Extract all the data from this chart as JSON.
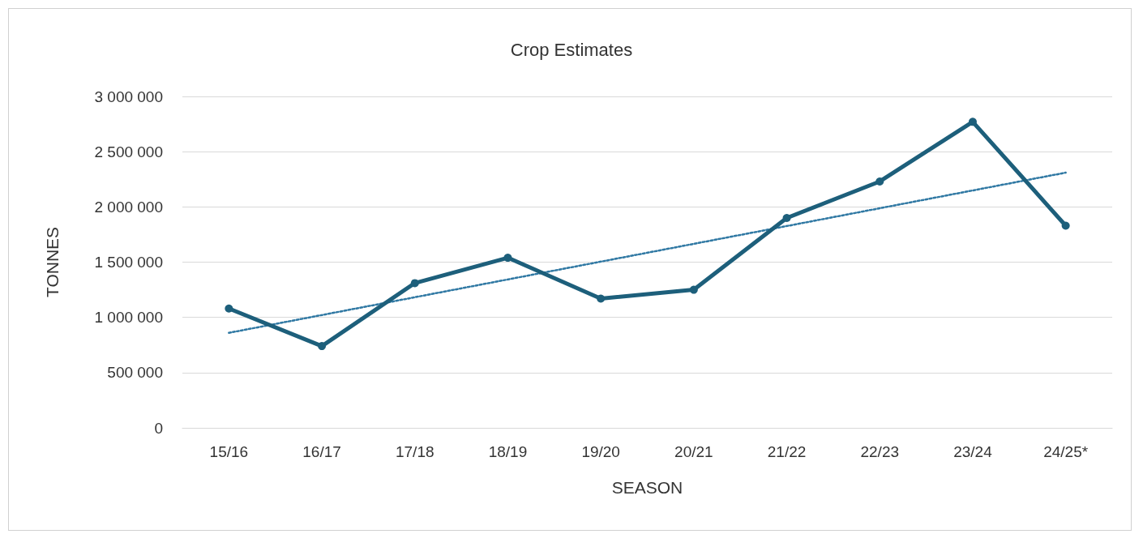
{
  "chart_data": {
    "type": "line",
    "title": "Crop Estimates",
    "xlabel": "SEASON",
    "ylabel": "TONNES",
    "categories": [
      "15/16",
      "16/17",
      "17/18",
      "18/19",
      "19/20",
      "20/21",
      "21/22",
      "22/23",
      "23/24",
      "24/25*"
    ],
    "series": [
      {
        "color": "#1d5f7b",
        "marker": "circle",
        "line_style": "solid",
        "values": [
          1080000,
          740000,
          1310000,
          1540000,
          1170000,
          1250000,
          1900000,
          2230000,
          2770000,
          1830000
        ]
      },
      {
        "type": "line",
        "color": "#2f78a3",
        "marker": "none",
        "line_style": "dotted",
        "x": [
          "15/16",
          "24/25*"
        ],
        "values": [
          860000,
          2310000
        ]
      }
    ],
    "ylim": [
      0,
      3000000
    ],
    "yticks": [
      {
        "value": 0,
        "label": "0"
      },
      {
        "value": 500000,
        "label": "500 000"
      },
      {
        "value": 1000000,
        "label": "1 000 000"
      },
      {
        "value": 1500000,
        "label": "1 500 000"
      },
      {
        "value": 2000000,
        "label": "2 000 000"
      },
      {
        "value": 2500000,
        "label": "2 500 000"
      },
      {
        "value": 3000000,
        "label": "3 000 000"
      }
    ],
    "grid": "y"
  }
}
